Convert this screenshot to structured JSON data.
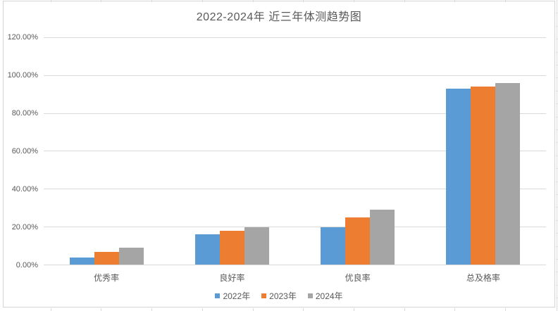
{
  "chart_data": {
    "type": "bar",
    "title": "2022-2024年 近三年体测趋势图",
    "categories": [
      "优秀率",
      "良好率",
      "优良率",
      "总及格率"
    ],
    "series": [
      {
        "name": "2022年",
        "color": "#5B9BD5",
        "values": [
          4,
          16,
          20,
          93
        ]
      },
      {
        "name": "2023年",
        "color": "#ED7D31",
        "values": [
          7,
          18,
          25,
          94
        ]
      },
      {
        "name": "2024年",
        "color": "#A5A5A5",
        "values": [
          9,
          20,
          29,
          96
        ]
      }
    ],
    "value_unit": "percent",
    "ylim": [
      0,
      120
    ],
    "ytick_step": 20,
    "ytick_labels": [
      "0.00%",
      "20.00%",
      "40.00%",
      "60.00%",
      "80.00%",
      "100.00%",
      "120.00%"
    ],
    "grid": true,
    "legend_position": "bottom",
    "colors": {
      "gridline": "#d9d9d9",
      "axis_line": "#d9d9d9",
      "axis_text": "#595959",
      "title_text": "#595959",
      "frame_border": "#d4d4d4"
    }
  }
}
